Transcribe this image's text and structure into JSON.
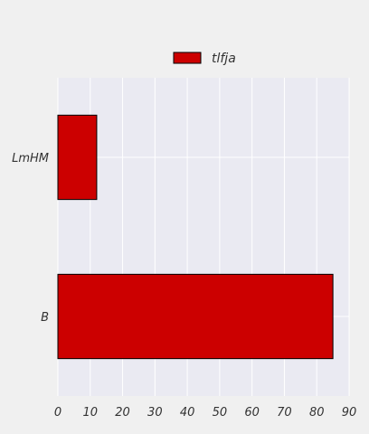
{
  "chart_data": {
    "type": "bar",
    "orientation": "horizontal",
    "title": "",
    "xlabel": "",
    "ylabel": "",
    "categories": [
      "B",
      "LmHM"
    ],
    "series": [
      {
        "name": "tlfja",
        "values": [
          85,
          12
        ],
        "color": "#cc0000"
      }
    ],
    "xlim": [
      0,
      90
    ],
    "xticks": [
      0,
      10,
      20,
      30,
      40,
      50,
      60,
      70,
      80,
      90
    ],
    "grid": true,
    "legend": "top-center"
  },
  "colors": {
    "background": "#f0f0f0",
    "plot_background": "#eaeaf2",
    "grid": "#ffffff",
    "bar": "#cc0000",
    "bar_edge": "#000000"
  }
}
